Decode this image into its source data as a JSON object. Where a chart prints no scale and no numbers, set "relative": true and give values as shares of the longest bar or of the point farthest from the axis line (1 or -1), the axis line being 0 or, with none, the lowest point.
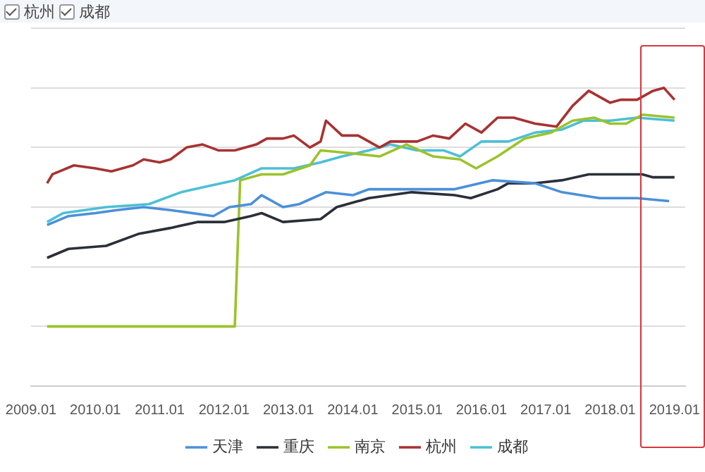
{
  "chart_data": {
    "type": "line",
    "relative": true,
    "grid": "y",
    "legend": "bottom",
    "marker": "none",
    "line_style": "solid",
    "annotations": [
      "杭州",
      "成都"
    ],
    "xlim": [
      "2009-01",
      "2019-03"
    ],
    "xticks": [
      {
        "value": "2009-01",
        "label": "2009.01"
      },
      {
        "value": "2010-01",
        "label": "2010.01"
      },
      {
        "value": "2011-01",
        "label": "2011.01"
      },
      {
        "value": "2012-01",
        "label": "2012.01"
      },
      {
        "value": "2013-01",
        "label": "2013.01"
      },
      {
        "value": "2014-01",
        "label": "2014.01"
      },
      {
        "value": "2015-01",
        "label": "2015.01"
      },
      {
        "value": "2016-01",
        "label": "2016.01"
      },
      {
        "value": "2017-01",
        "label": "2017.01"
      },
      {
        "value": "2018-01",
        "label": "2018.01"
      },
      {
        "value": "2019-01",
        "label": "2019.01"
      }
    ],
    "series": [
      {
        "name": "天津",
        "color": "#4a90d9",
        "x": [
          "2009-04",
          "2009-08",
          "2010-01",
          "2010-05",
          "2010-10",
          "2011-03",
          "2011-11",
          "2012-02",
          "2012-06",
          "2012-08",
          "2012-12",
          "2013-03",
          "2013-08",
          "2014-01",
          "2014-04",
          "2014-12",
          "2015-08",
          "2016-03",
          "2016-11",
          "2017-04",
          "2017-11",
          "2018-06",
          "2018-12"
        ],
        "values": [
          0.54,
          0.57,
          0.58,
          0.59,
          0.6,
          0.59,
          0.57,
          0.6,
          0.61,
          0.64,
          0.6,
          0.61,
          0.65,
          0.64,
          0.66,
          0.66,
          0.66,
          0.69,
          0.68,
          0.65,
          0.63,
          0.63,
          0.62
        ]
      },
      {
        "name": "重庆",
        "color": "#2b2f3a",
        "x": [
          "2009-04",
          "2009-08",
          "2010-03",
          "2010-09",
          "2011-03",
          "2011-08",
          "2012-01",
          "2012-06",
          "2012-08",
          "2012-12",
          "2013-07",
          "2013-10",
          "2014-04",
          "2014-12",
          "2015-08",
          "2015-11",
          "2016-04",
          "2016-06",
          "2016-11",
          "2017-04",
          "2017-09",
          "2018-04",
          "2018-07",
          "2018-09",
          "2019-01"
        ],
        "values": [
          0.43,
          0.46,
          0.47,
          0.51,
          0.53,
          0.55,
          0.55,
          0.57,
          0.58,
          0.55,
          0.56,
          0.6,
          0.63,
          0.65,
          0.64,
          0.63,
          0.66,
          0.68,
          0.68,
          0.69,
          0.71,
          0.71,
          0.71,
          0.7,
          0.7
        ]
      },
      {
        "name": "南京",
        "color": "#9ac32b",
        "x": [
          "2009-04",
          "2012-03",
          "2012-04",
          "2012-08",
          "2012-12",
          "2013-05",
          "2013-07",
          "2014-01",
          "2014-06",
          "2014-11",
          "2015-04",
          "2015-09",
          "2015-12",
          "2016-04",
          "2016-09",
          "2017-02",
          "2017-06",
          "2017-10",
          "2018-01",
          "2018-04",
          "2018-07",
          "2019-01"
        ],
        "values": [
          0.2,
          0.2,
          0.69,
          0.71,
          0.71,
          0.74,
          0.79,
          0.78,
          0.77,
          0.81,
          0.77,
          0.76,
          0.73,
          0.77,
          0.83,
          0.85,
          0.89,
          0.9,
          0.88,
          0.88,
          0.91,
          0.9
        ]
      },
      {
        "name": "杭州",
        "color": "#a83232",
        "x": [
          "2009-04",
          "2009-05",
          "2009-09",
          "2010-01",
          "2010-04",
          "2010-08",
          "2010-10",
          "2011-01",
          "2011-03",
          "2011-06",
          "2011-09",
          "2011-12",
          "2012-03",
          "2012-07",
          "2012-09",
          "2012-12",
          "2013-02",
          "2013-05",
          "2013-07",
          "2013-08",
          "2013-11",
          "2014-02",
          "2014-06",
          "2014-08",
          "2015-01",
          "2015-04",
          "2015-07",
          "2015-10",
          "2016-01",
          "2016-04",
          "2016-07",
          "2016-11",
          "2017-03",
          "2017-06",
          "2017-09",
          "2018-01",
          "2018-03",
          "2018-06",
          "2018-09",
          "2018-11",
          "2019-01"
        ],
        "values": [
          0.68,
          0.71,
          0.74,
          0.73,
          0.72,
          0.74,
          0.76,
          0.75,
          0.76,
          0.8,
          0.81,
          0.79,
          0.79,
          0.81,
          0.83,
          0.83,
          0.84,
          0.8,
          0.82,
          0.89,
          0.84,
          0.84,
          0.8,
          0.82,
          0.82,
          0.84,
          0.83,
          0.88,
          0.85,
          0.9,
          0.9,
          0.88,
          0.87,
          0.94,
          0.99,
          0.95,
          0.96,
          0.96,
          0.99,
          1.0,
          0.96
        ]
      },
      {
        "name": "成都",
        "color": "#4dbfd6",
        "x": [
          "2009-04",
          "2009-07",
          "2010-03",
          "2010-11",
          "2011-05",
          "2011-10",
          "2012-03",
          "2012-08",
          "2013-02",
          "2013-07",
          "2013-11",
          "2014-04",
          "2014-08",
          "2015-01",
          "2015-06",
          "2015-09",
          "2016-01",
          "2016-06",
          "2016-11",
          "2017-04",
          "2017-08",
          "2018-01",
          "2018-06",
          "2019-01"
        ],
        "values": [
          0.55,
          0.58,
          0.6,
          0.61,
          0.65,
          0.67,
          0.69,
          0.73,
          0.73,
          0.75,
          0.77,
          0.79,
          0.81,
          0.79,
          0.79,
          0.77,
          0.82,
          0.82,
          0.85,
          0.86,
          0.89,
          0.89,
          0.9,
          0.89
        ]
      }
    ]
  }
}
